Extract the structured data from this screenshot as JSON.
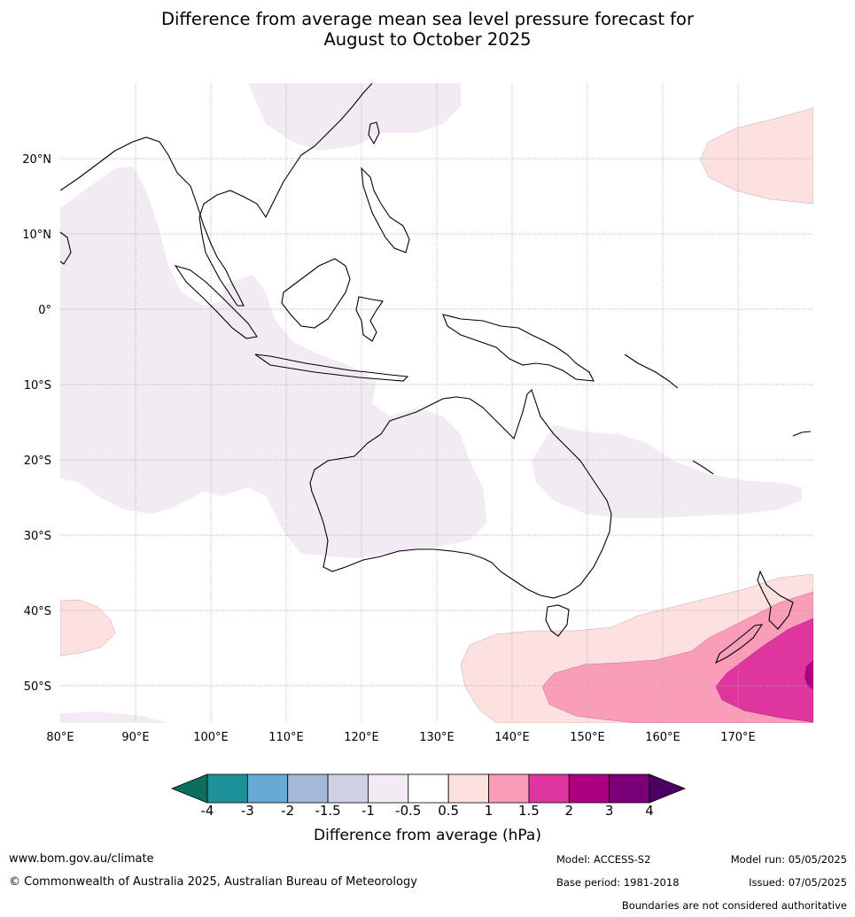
{
  "title_line1": "Difference from average mean sea level pressure forecast for",
  "title_line2": "August to October 2025",
  "map": {
    "lon_range": [
      80,
      180
    ],
    "lat_range": [
      -55,
      30
    ],
    "lon_ticks": [
      "80°E",
      "90°E",
      "100°E",
      "110°E",
      "120°E",
      "130°E",
      "140°E",
      "150°E",
      "160°E",
      "170°E"
    ],
    "lat_ticks": [
      "20°N",
      "10°N",
      "0°",
      "10°S",
      "20°S",
      "30°S",
      "40°S",
      "50°S"
    ],
    "gridlines": true,
    "regions": [
      {
        "name": "pacific-north-high",
        "category": "0.5 to 1"
      },
      {
        "name": "tasman-south-high",
        "category": "0.5 to 1"
      },
      {
        "name": "tasman-south-higher",
        "category": "1 to 1.5"
      },
      {
        "name": "nz-south-highest",
        "category": "1.5 to 2"
      },
      {
        "name": "indian-ocean-low",
        "category": "-1 to -0.5"
      },
      {
        "name": "australia-west-low",
        "category": "-1 to -0.5"
      },
      {
        "name": "coral-sea-low",
        "category": "-1 to -0.5"
      }
    ]
  },
  "colorbar": {
    "tick_labels": [
      "-4",
      "-3",
      "-2",
      "-1.5",
      "-1",
      "-0.5",
      "0.5",
      "1",
      "1.5",
      "2",
      "3",
      "4"
    ],
    "colors": [
      "#0b6e5f",
      "#1d9199",
      "#67aad3",
      "#a4b8da",
      "#cfd1e6",
      "#f3ebf4",
      "#ffffff",
      "#fde0e0",
      "#f99db8",
      "#de359e",
      "#ac007e",
      "#790079",
      "#4b0061"
    ],
    "label": "Difference from average (hPa)"
  },
  "footer": {
    "website": "www.bom.gov.au/climate",
    "copyright": "© Commonwealth of Australia 2025, Australian Bureau of Meteorology",
    "model": "Model: ACCESS-S2",
    "base_period": "Base period: 1981-2018",
    "model_run": "Model run: 05/05/2025",
    "issued": "Issued: 07/05/2025",
    "disclaimer": "Boundaries are not considered authoritative"
  }
}
